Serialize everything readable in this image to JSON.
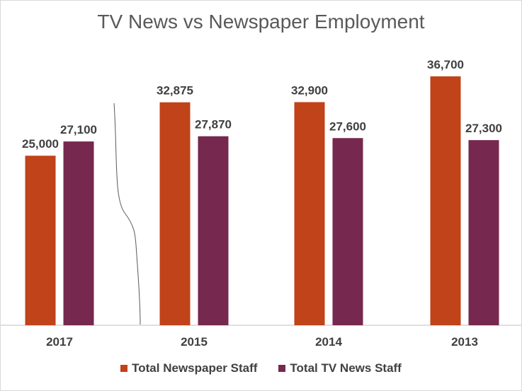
{
  "chart_data": {
    "type": "bar",
    "title": "TV News vs Newspaper Employment",
    "categories": [
      "2017",
      "2015",
      "2014",
      "2013"
    ],
    "series": [
      {
        "name": "Total Newspaper Staff",
        "values": [
          25000,
          32875,
          32900,
          36700
        ],
        "labels": [
          "25,000",
          "32,875",
          "32,900",
          "36,700"
        ],
        "color": "#C0431A"
      },
      {
        "name": "Total TV News Staff",
        "values": [
          27100,
          27870,
          27600,
          27300
        ],
        "labels": [
          "27,100",
          "27,870",
          "27,600",
          "27,300"
        ],
        "color": "#76284F"
      }
    ],
    "ylim": [
      0,
      36700
    ],
    "grid": false,
    "legend": "bottom",
    "xlabel": "",
    "ylabel": ""
  }
}
